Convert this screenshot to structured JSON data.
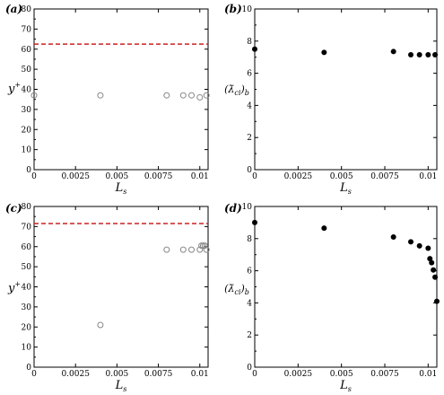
{
  "figure": {
    "panels": [
      "a",
      "b",
      "c",
      "d"
    ]
  },
  "colors": {
    "reference_line": "#cc2222",
    "open_marker": "#888888",
    "filled_marker": "#000000",
    "axis": "#000000"
  },
  "chart_data": [
    {
      "id": "a",
      "type": "scatter",
      "panel_label": "(a)",
      "xlabel": "L_s",
      "ylabel": "y+",
      "xlim": [
        0,
        0.0105
      ],
      "ylim": [
        0,
        80
      ],
      "xticks": [
        0,
        0.0025,
        0.005,
        0.0075,
        0.01
      ],
      "xtick_labels": [
        "0",
        "0.0025",
        "0.005",
        "0.0075",
        "0.01"
      ],
      "yticks": [
        0,
        10,
        20,
        30,
        40,
        50,
        60,
        70,
        80
      ],
      "ytick_labels": [
        "0",
        "10",
        "20",
        "30",
        "40",
        "50",
        "60",
        "70",
        "80"
      ],
      "marker": "open-circle",
      "x": [
        0,
        0.004,
        0.008,
        0.009,
        0.0095,
        0.01,
        0.0104
      ],
      "y": [
        37,
        37,
        37,
        37,
        37,
        36,
        37
      ],
      "reference_line": {
        "y": 62.5,
        "style": "dashed"
      }
    },
    {
      "id": "b",
      "type": "scatter",
      "panel_label": "(b)",
      "xlabel": "L_s",
      "ylabel": "(λci)b",
      "xlim": [
        0,
        0.0105
      ],
      "ylim": [
        0,
        10
      ],
      "xticks": [
        0,
        0.0025,
        0.005,
        0.0075,
        0.01
      ],
      "xtick_labels": [
        "0",
        "0.0025",
        "0.005",
        "0.0075",
        "0.01"
      ],
      "yticks": [
        0,
        2,
        4,
        6,
        8,
        10
      ],
      "ytick_labels": [
        "0",
        "2",
        "4",
        "6",
        "8",
        "10"
      ],
      "marker": "filled-circle",
      "x": [
        0,
        0.004,
        0.008,
        0.009,
        0.0095,
        0.01,
        0.0104
      ],
      "y": [
        7.5,
        7.3,
        7.35,
        7.15,
        7.15,
        7.15,
        7.15
      ]
    },
    {
      "id": "c",
      "type": "scatter",
      "panel_label": "(c)",
      "xlabel": "L_s",
      "ylabel": "y+",
      "xlim": [
        0,
        0.0105
      ],
      "ylim": [
        0,
        80
      ],
      "xticks": [
        0,
        0.0025,
        0.005,
        0.0075,
        0.01
      ],
      "xtick_labels": [
        "0",
        "0.0025",
        "0.005",
        "0.0075",
        "0.01"
      ],
      "yticks": [
        0,
        10,
        20,
        30,
        40,
        50,
        60,
        70,
        80
      ],
      "ytick_labels": [
        "0",
        "10",
        "20",
        "30",
        "40",
        "50",
        "60",
        "70",
        "80"
      ],
      "marker": "open-circle",
      "x": [
        0.004,
        0.008,
        0.009,
        0.0095,
        0.01,
        0.0101,
        0.0102,
        0.0103,
        0.0104
      ],
      "y": [
        21,
        58.5,
        58.5,
        58.5,
        58.5,
        60.5,
        60.5,
        60.5,
        58.5
      ],
      "reference_line": {
        "y": 71.5,
        "style": "dashed"
      }
    },
    {
      "id": "d",
      "type": "scatter",
      "panel_label": "(d)",
      "xlabel": "L_s",
      "ylabel": "(λci)b",
      "xlim": [
        0,
        0.0105
      ],
      "ylim": [
        0,
        10
      ],
      "xticks": [
        0,
        0.0025,
        0.005,
        0.0075,
        0.01
      ],
      "xtick_labels": [
        "0",
        "0.0025",
        "0.005",
        "0.0075",
        "0.01"
      ],
      "yticks": [
        0,
        2,
        4,
        6,
        8,
        10
      ],
      "ytick_labels": [
        "0",
        "2",
        "4",
        "6",
        "8",
        "10"
      ],
      "marker": "filled-circle",
      "x": [
        0,
        0.004,
        0.008,
        0.009,
        0.0095,
        0.01,
        0.0101,
        0.0102,
        0.0103,
        0.0104
      ],
      "y": [
        9.0,
        8.65,
        8.1,
        7.8,
        7.55,
        7.4,
        6.75,
        6.5,
        6.05,
        5.6
      ],
      "extra_points": [
        [
          0.0105,
          4.1
        ]
      ]
    }
  ]
}
